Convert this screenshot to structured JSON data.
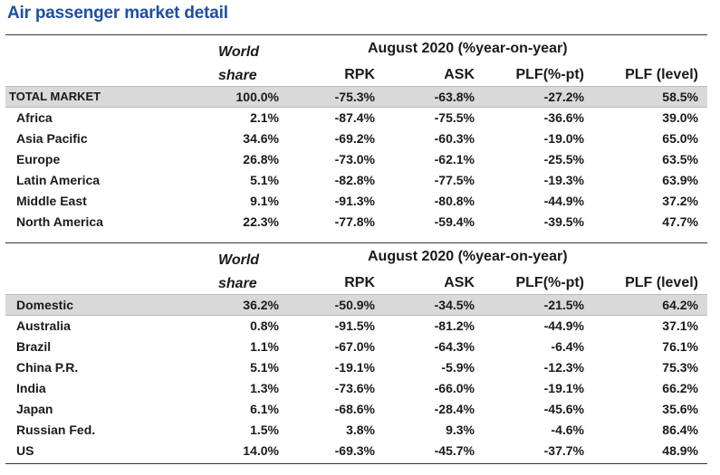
{
  "title": "Air passenger market detail",
  "header": {
    "world_share_1": "World",
    "world_share_2": "share",
    "period": "August 2020 (%year-on-year)",
    "rpk": "RPK",
    "ask": "ASK",
    "plf_pt": "PLF(%-pt)",
    "plf_level": "PLF (level)"
  },
  "regions": [
    {
      "name": "TOTAL MARKET",
      "share": "100.0%",
      "rpk": "-75.3%",
      "ask": "-63.8%",
      "plf_pt": "-27.2%",
      "plf_level": "58.5%"
    },
    {
      "name": "Africa",
      "share": "2.1%",
      "rpk": "-87.4%",
      "ask": "-75.5%",
      "plf_pt": "-36.6%",
      "plf_level": "39.0%"
    },
    {
      "name": "Asia Pacific",
      "share": "34.6%",
      "rpk": "-69.2%",
      "ask": "-60.3%",
      "plf_pt": "-19.0%",
      "plf_level": "65.0%"
    },
    {
      "name": "Europe",
      "share": "26.8%",
      "rpk": "-73.0%",
      "ask": "-62.1%",
      "plf_pt": "-25.5%",
      "plf_level": "63.5%"
    },
    {
      "name": "Latin America",
      "share": "5.1%",
      "rpk": "-82.8%",
      "ask": "-77.5%",
      "plf_pt": "-19.3%",
      "plf_level": "63.9%"
    },
    {
      "name": "Middle East",
      "share": "9.1%",
      "rpk": "-91.3%",
      "ask": "-80.8%",
      "plf_pt": "-44.9%",
      "plf_level": "37.2%"
    },
    {
      "name": "North America",
      "share": "22.3%",
      "rpk": "-77.8%",
      "ask": "-59.4%",
      "plf_pt": "-39.5%",
      "plf_level": "47.7%"
    }
  ],
  "domestic": [
    {
      "name": "Domestic",
      "share": "36.2%",
      "rpk": "-50.9%",
      "ask": "-34.5%",
      "plf_pt": "-21.5%",
      "plf_level": "64.2%"
    },
    {
      "name": "Australia",
      "share": "0.8%",
      "rpk": "-91.5%",
      "ask": "-81.2%",
      "plf_pt": "-44.9%",
      "plf_level": "37.1%"
    },
    {
      "name": "Brazil",
      "share": "1.1%",
      "rpk": "-67.0%",
      "ask": "-64.3%",
      "plf_pt": "-6.4%",
      "plf_level": "76.1%"
    },
    {
      "name": "China P.R.",
      "share": "5.1%",
      "rpk": "-19.1%",
      "ask": "-5.9%",
      "plf_pt": "-12.3%",
      "plf_level": "75.3%"
    },
    {
      "name": "India",
      "share": "1.3%",
      "rpk": "-73.6%",
      "ask": "-66.0%",
      "plf_pt": "-19.1%",
      "plf_level": "66.2%"
    },
    {
      "name": "Japan",
      "share": "6.1%",
      "rpk": "-68.6%",
      "ask": "-28.4%",
      "plf_pt": "-45.6%",
      "plf_level": "35.6%"
    },
    {
      "name": "Russian Fed.",
      "share": "1.5%",
      "rpk": "3.8%",
      "ask": "9.3%",
      "plf_pt": "-4.6%",
      "plf_level": "86.4%"
    },
    {
      "name": "US",
      "share": "14.0%",
      "rpk": "-69.3%",
      "ask": "-45.7%",
      "plf_pt": "-37.7%",
      "plf_level": "48.9%"
    }
  ]
}
